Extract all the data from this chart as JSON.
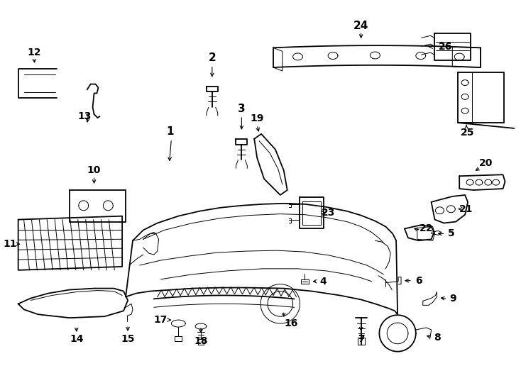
{
  "background_color": "#ffffff",
  "line_color": "#000000",
  "lw_main": 1.3,
  "lw_thin": 0.7,
  "figsize": [
    7.34,
    5.4
  ],
  "dpi": 100
}
